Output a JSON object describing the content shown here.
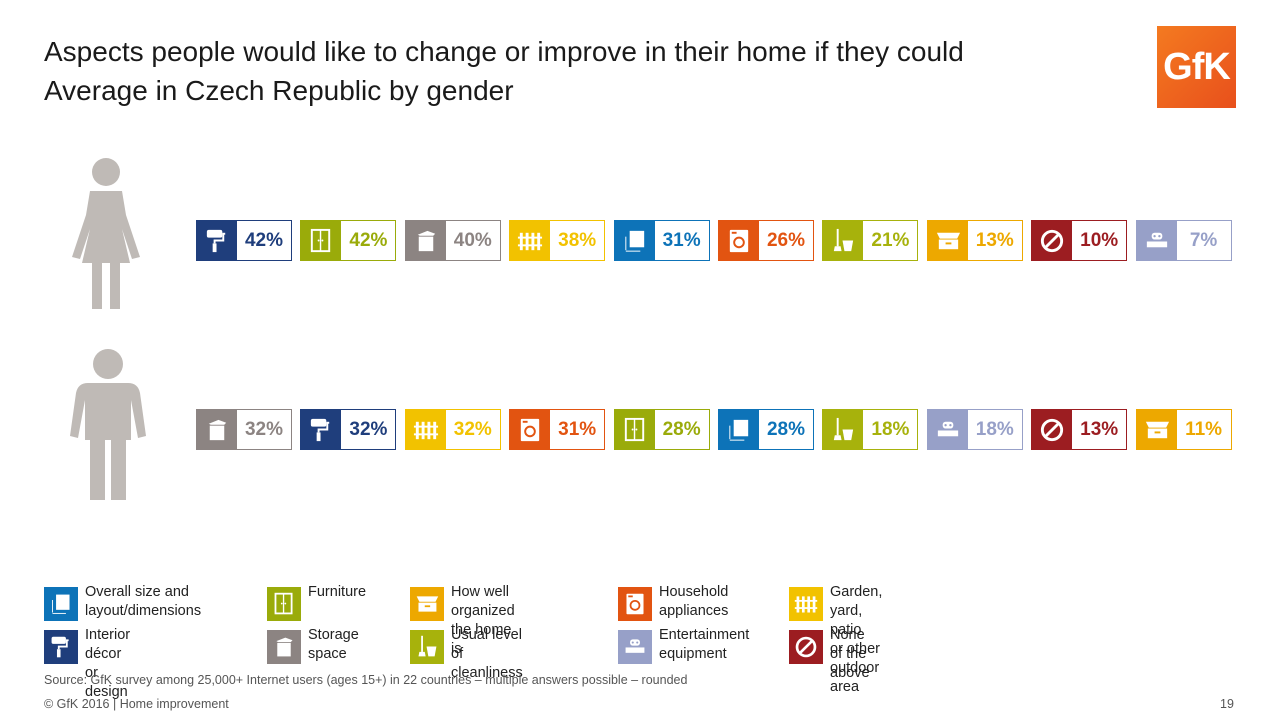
{
  "title_line1": "Aspects people would like to change or improve in their home if they could",
  "title_line2": "Average in Czech Republic by gender",
  "logo_text": "GfK",
  "categories": {
    "interior": {
      "label": "Interior décor or design",
      "color": "#1f3e7c",
      "icon": "paint-roller-icon"
    },
    "furniture": {
      "label": "Furniture",
      "color": "#9aab0a",
      "icon": "wardrobe-icon"
    },
    "storage": {
      "label": "Storage space",
      "color": "#8c8482",
      "icon": "storage-box-icon"
    },
    "garden": {
      "label": "Garden, yard, patio or other outdoor area",
      "color": "#f2c200",
      "icon": "fence-icon"
    },
    "size": {
      "label": "Overall size and layout/dimensions",
      "color": "#0d73b8",
      "icon": "floorplan-icon"
    },
    "appliances": {
      "label": "Household appliances",
      "color": "#e25411",
      "icon": "washing-machine-icon"
    },
    "cleanliness": {
      "label": "Usual level of cleanliness",
      "color": "#a7b20c",
      "icon": "mop-bucket-icon"
    },
    "organized": {
      "label": "How well organized the home is",
      "color": "#eda800",
      "icon": "drawer-icon"
    },
    "none": {
      "label": "None of the above",
      "color": "#9c1d21",
      "icon": "no-entry-icon"
    },
    "entertainment": {
      "label": "Entertainment equipment",
      "color": "#97a0c8",
      "icon": "game-console-icon"
    }
  },
  "chart_data": {
    "type": "table",
    "title": "Aspects people would like to change or improve in their home if they could",
    "subtitle": "Average in Czech Republic by gender",
    "series": [
      {
        "name": "female",
        "items": [
          {
            "key": "interior",
            "value": 42
          },
          {
            "key": "furniture",
            "value": 42
          },
          {
            "key": "storage",
            "value": 40
          },
          {
            "key": "garden",
            "value": 38
          },
          {
            "key": "size",
            "value": 31
          },
          {
            "key": "appliances",
            "value": 26
          },
          {
            "key": "cleanliness",
            "value": 21
          },
          {
            "key": "organized",
            "value": 13
          },
          {
            "key": "none",
            "value": 10
          },
          {
            "key": "entertainment",
            "value": 7
          }
        ]
      },
      {
        "name": "male",
        "items": [
          {
            "key": "storage",
            "value": 32
          },
          {
            "key": "interior",
            "value": 32
          },
          {
            "key": "garden",
            "value": 32
          },
          {
            "key": "appliances",
            "value": 31
          },
          {
            "key": "furniture",
            "value": 28
          },
          {
            "key": "size",
            "value": 28
          },
          {
            "key": "cleanliness",
            "value": 18
          },
          {
            "key": "entertainment",
            "value": 18
          },
          {
            "key": "none",
            "value": 13
          },
          {
            "key": "organized",
            "value": 11
          }
        ]
      }
    ],
    "unit": "%"
  },
  "legend": [
    {
      "key": "size",
      "lines": [
        "Overall size and",
        "layout/dimensions"
      ]
    },
    {
      "key": "furniture",
      "lines": [
        "Furniture"
      ]
    },
    {
      "key": "organized",
      "lines": [
        "How well organized",
        "the home is"
      ]
    },
    {
      "key": "appliances",
      "lines": [
        "Household",
        "appliances"
      ]
    },
    {
      "key": "garden",
      "lines": [
        "Garden, yard, patio",
        "or other outdoor area"
      ]
    },
    {
      "key": "interior",
      "lines": [
        "Interior décor",
        "or design"
      ]
    },
    {
      "key": "storage",
      "lines": [
        "Storage",
        "space"
      ]
    },
    {
      "key": "cleanliness",
      "lines": [
        "Usual level",
        "of cleanliness"
      ]
    },
    {
      "key": "entertainment",
      "lines": [
        "Entertainment",
        "equipment"
      ]
    },
    {
      "key": "none",
      "lines": [
        "None of the",
        "above"
      ]
    }
  ],
  "source": "Source: GfK survey among 25,000+ Internet users (ages 15+) in 22 countries – multiple answers possible – rounded",
  "footer": "© GfK 2016 | Home improvement",
  "page_number": "19"
}
